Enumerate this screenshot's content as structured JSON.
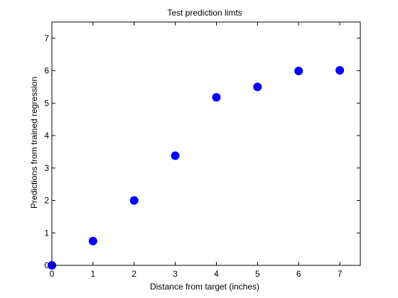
{
  "chart_data": {
    "type": "scatter",
    "title": "Test prediction limts",
    "xlabel": "Distance from target (inches)",
    "ylabel": "Predictions from trained regression",
    "xlim": [
      0,
      7.5
    ],
    "ylim": [
      0,
      7.5
    ],
    "xticks": [
      "0",
      "1",
      "2",
      "3",
      "4",
      "5",
      "6",
      "7"
    ],
    "yticks": [
      "0",
      "1",
      "2",
      "3",
      "4",
      "5",
      "6",
      "7"
    ],
    "grid": false,
    "marker_color": "#0000ff",
    "series": [
      {
        "x": [
          0,
          1,
          2,
          3,
          4,
          5,
          6,
          7
        ],
        "y": [
          0,
          0.75,
          2.0,
          3.38,
          5.18,
          5.5,
          5.99,
          6.01
        ]
      }
    ]
  }
}
